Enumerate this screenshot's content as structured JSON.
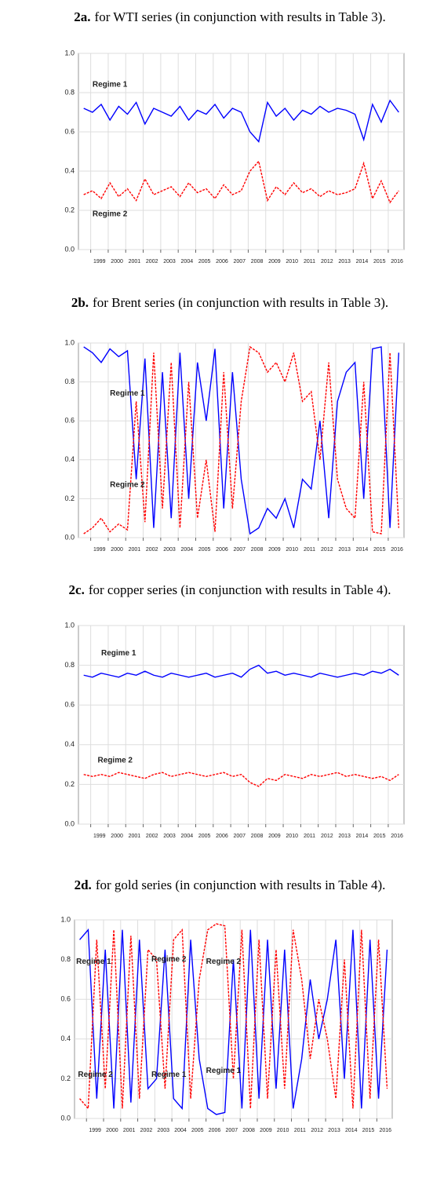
{
  "chart_data": [
    {
      "type": "line",
      "label": "2a.",
      "title": "for WTI series (in conjunction with results in Table 3).",
      "x": [
        1998.6,
        1999.1,
        1999.6,
        2000.1,
        2000.6,
        2001.1,
        2001.6,
        2002.1,
        2002.6,
        2003.1,
        2003.6,
        2004.1,
        2004.6,
        2005.1,
        2005.6,
        2006.1,
        2006.6,
        2007.1,
        2007.6,
        2008.1,
        2008.6,
        2009.1,
        2009.6,
        2010.1,
        2010.6,
        2011.1,
        2011.6,
        2012.1,
        2012.6,
        2013.1,
        2013.6,
        2014.1,
        2014.6,
        2015.1,
        2015.6,
        2016.1,
        2016.6
      ],
      "series": [
        {
          "name": "Regime 1",
          "color": "#0000ff",
          "values": [
            0.72,
            0.7,
            0.74,
            0.66,
            0.73,
            0.69,
            0.75,
            0.64,
            0.72,
            0.7,
            0.68,
            0.73,
            0.66,
            0.71,
            0.69,
            0.74,
            0.67,
            0.72,
            0.7,
            0.6,
            0.55,
            0.75,
            0.68,
            0.72,
            0.66,
            0.71,
            0.69,
            0.73,
            0.7,
            0.72,
            0.71,
            0.69,
            0.56,
            0.74,
            0.65,
            0.76,
            0.7
          ]
        },
        {
          "name": "Regime 2",
          "color": "#ff0000",
          "values": [
            0.28,
            0.3,
            0.26,
            0.34,
            0.27,
            0.31,
            0.25,
            0.36,
            0.28,
            0.3,
            0.32,
            0.27,
            0.34,
            0.29,
            0.31,
            0.26,
            0.33,
            0.28,
            0.3,
            0.4,
            0.45,
            0.25,
            0.32,
            0.28,
            0.34,
            0.29,
            0.31,
            0.27,
            0.3,
            0.28,
            0.29,
            0.31,
            0.44,
            0.26,
            0.35,
            0.24,
            0.3
          ]
        }
      ],
      "annotations": [
        {
          "text": "Regime 1",
          "x": 1999.1,
          "y": 0.84
        },
        {
          "text": "Regime 2",
          "x": 1999.1,
          "y": 0.18
        }
      ],
      "xlim": [
        1998.3,
        2016.9
      ],
      "xticks": [
        1999,
        2000,
        2001,
        2002,
        2003,
        2004,
        2005,
        2006,
        2007,
        2008,
        2009,
        2010,
        2011,
        2012,
        2013,
        2014,
        2015,
        2016
      ],
      "ylim": [
        0,
        1
      ],
      "yticks": [
        {
          "value": 0,
          "label": "0.0"
        },
        0.2,
        0.4,
        0.6,
        0.8,
        {
          "value": 1,
          "label": "1.0"
        }
      ],
      "grid": true
    },
    {
      "type": "line",
      "label": "2b.",
      "title": "for Brent series (in conjunction with results in Table 3).",
      "x": [
        1998.6,
        1999.1,
        1999.6,
        2000.1,
        2000.6,
        2001.1,
        2001.6,
        2002.1,
        2002.6,
        2003.1,
        2003.6,
        2004.1,
        2004.6,
        2005.1,
        2005.6,
        2006.1,
        2006.6,
        2007.1,
        2007.6,
        2008.1,
        2008.6,
        2009.1,
        2009.6,
        2010.1,
        2010.6,
        2011.1,
        2011.6,
        2012.1,
        2012.6,
        2013.1,
        2013.6,
        2014.1,
        2014.6,
        2015.1,
        2015.6,
        2016.1,
        2016.6
      ],
      "series": [
        {
          "name": "Regime 1",
          "color": "#0000ff",
          "values": [
            0.98,
            0.95,
            0.9,
            0.97,
            0.93,
            0.96,
            0.3,
            0.92,
            0.05,
            0.85,
            0.1,
            0.95,
            0.2,
            0.9,
            0.6,
            0.97,
            0.15,
            0.85,
            0.3,
            0.02,
            0.05,
            0.15,
            0.1,
            0.2,
            0.05,
            0.3,
            0.25,
            0.6,
            0.1,
            0.7,
            0.85,
            0.9,
            0.2,
            0.97,
            0.98,
            0.05,
            0.95
          ]
        },
        {
          "name": "Regime 2",
          "color": "#ff0000",
          "values": [
            0.02,
            0.05,
            0.1,
            0.03,
            0.07,
            0.04,
            0.7,
            0.08,
            0.95,
            0.15,
            0.9,
            0.05,
            0.8,
            0.1,
            0.4,
            0.03,
            0.85,
            0.15,
            0.7,
            0.98,
            0.95,
            0.85,
            0.9,
            0.8,
            0.95,
            0.7,
            0.75,
            0.4,
            0.9,
            0.3,
            0.15,
            0.1,
            0.8,
            0.03,
            0.02,
            0.95,
            0.05
          ]
        }
      ],
      "annotations": [
        {
          "text": "Regime 1",
          "x": 2000.1,
          "y": 0.74
        },
        {
          "text": "Regime 2",
          "x": 2000.1,
          "y": 0.27
        }
      ],
      "xlim": [
        1998.3,
        2016.9
      ],
      "xticks": [
        1999,
        2000,
        2001,
        2002,
        2003,
        2004,
        2005,
        2006,
        2007,
        2008,
        2009,
        2010,
        2011,
        2012,
        2013,
        2014,
        2015,
        2016
      ],
      "ylim": [
        0,
        1
      ],
      "yticks": [
        {
          "value": 0,
          "label": "0.0"
        },
        0.2,
        0.4,
        0.6,
        0.8,
        {
          "value": 1,
          "label": "1.0"
        }
      ],
      "grid": true
    },
    {
      "type": "line",
      "label": "2c.",
      "title": "for copper series (in conjunction with results in Table 4).",
      "x": [
        1998.6,
        1999.1,
        1999.6,
        2000.1,
        2000.6,
        2001.1,
        2001.6,
        2002.1,
        2002.6,
        2003.1,
        2003.6,
        2004.1,
        2004.6,
        2005.1,
        2005.6,
        2006.1,
        2006.6,
        2007.1,
        2007.6,
        2008.1,
        2008.6,
        2009.1,
        2009.6,
        2010.1,
        2010.6,
        2011.1,
        2011.6,
        2012.1,
        2012.6,
        2013.1,
        2013.6,
        2014.1,
        2014.6,
        2015.1,
        2015.6,
        2016.1,
        2016.6
      ],
      "series": [
        {
          "name": "Regime 1",
          "color": "#0000ff",
          "values": [
            0.75,
            0.74,
            0.76,
            0.75,
            0.74,
            0.76,
            0.75,
            0.77,
            0.75,
            0.74,
            0.76,
            0.75,
            0.74,
            0.75,
            0.76,
            0.74,
            0.75,
            0.76,
            0.74,
            0.78,
            0.8,
            0.76,
            0.77,
            0.75,
            0.76,
            0.75,
            0.74,
            0.76,
            0.75,
            0.74,
            0.75,
            0.76,
            0.75,
            0.77,
            0.76,
            0.78,
            0.75
          ]
        },
        {
          "name": "Regime 2",
          "color": "#ff0000",
          "values": [
            0.25,
            0.24,
            0.25,
            0.24,
            0.26,
            0.25,
            0.24,
            0.23,
            0.25,
            0.26,
            0.24,
            0.25,
            0.26,
            0.25,
            0.24,
            0.25,
            0.26,
            0.24,
            0.25,
            0.21,
            0.19,
            0.23,
            0.22,
            0.25,
            0.24,
            0.23,
            0.25,
            0.24,
            0.25,
            0.26,
            0.24,
            0.25,
            0.24,
            0.23,
            0.24,
            0.22,
            0.25
          ]
        }
      ],
      "annotations": [
        {
          "text": "Regime 1",
          "x": 1999.6,
          "y": 0.86
        },
        {
          "text": "Regime 2",
          "x": 1999.4,
          "y": 0.32
        }
      ],
      "xlim": [
        1998.3,
        2016.9
      ],
      "xticks": [
        1999,
        2000,
        2001,
        2002,
        2003,
        2004,
        2005,
        2006,
        2007,
        2008,
        2009,
        2010,
        2011,
        2012,
        2013,
        2014,
        2015,
        2016
      ],
      "ylim": [
        0,
        1
      ],
      "yticks": [
        {
          "value": 0,
          "label": "0.0"
        },
        0.2,
        0.4,
        0.6,
        0.8,
        {
          "value": 1,
          "label": "1.0"
        }
      ],
      "grid": true
    },
    {
      "type": "line",
      "label": "2d.",
      "title": "for gold series (in conjunction with results in Table 4).",
      "x": [
        1998.6,
        1999.1,
        1999.6,
        2000.1,
        2000.6,
        2001.1,
        2001.6,
        2002.1,
        2002.6,
        2003.1,
        2003.6,
        2004.1,
        2004.6,
        2005.1,
        2005.6,
        2006.1,
        2006.6,
        2007.1,
        2007.6,
        2008.1,
        2008.6,
        2009.1,
        2009.6,
        2010.1,
        2010.6,
        2011.1,
        2011.6,
        2012.1,
        2012.6,
        2013.1,
        2013.6,
        2014.1,
        2014.6,
        2015.1,
        2015.6,
        2016.1,
        2016.6
      ],
      "series": [
        {
          "name": "Regime 1",
          "color": "#0000ff",
          "values": [
            0.9,
            0.95,
            0.1,
            0.85,
            0.05,
            0.95,
            0.08,
            0.9,
            0.15,
            0.2,
            0.85,
            0.1,
            0.05,
            0.9,
            0.3,
            0.05,
            0.02,
            0.03,
            0.8,
            0.05,
            0.95,
            0.1,
            0.9,
            0.15,
            0.85,
            0.05,
            0.3,
            0.7,
            0.4,
            0.6,
            0.9,
            0.2,
            0.95,
            0.05,
            0.9,
            0.1,
            0.85
          ]
        },
        {
          "name": "Regime 2",
          "color": "#ff0000",
          "values": [
            0.1,
            0.05,
            0.9,
            0.15,
            0.95,
            0.05,
            0.92,
            0.1,
            0.85,
            0.8,
            0.15,
            0.9,
            0.95,
            0.1,
            0.7,
            0.95,
            0.98,
            0.97,
            0.2,
            0.95,
            0.05,
            0.9,
            0.1,
            0.85,
            0.15,
            0.95,
            0.7,
            0.3,
            0.6,
            0.4,
            0.1,
            0.8,
            0.05,
            0.95,
            0.1,
            0.9,
            0.15
          ]
        }
      ],
      "annotations": [
        {
          "text": "Regime 1",
          "x": 1998.4,
          "y": 0.79
        },
        {
          "text": "Regime 2",
          "x": 2002.8,
          "y": 0.8
        },
        {
          "text": "Regime 2",
          "x": 2006.0,
          "y": 0.79
        },
        {
          "text": "Regime 2",
          "x": 1998.5,
          "y": 0.22
        },
        {
          "text": "Regime 1",
          "x": 2002.8,
          "y": 0.22
        },
        {
          "text": "Regime 1",
          "x": 2006.0,
          "y": 0.24
        }
      ],
      "xlim": [
        1998.3,
        2016.9
      ],
      "xticks": [
        1999,
        2000,
        2001,
        2002,
        2003,
        2004,
        2005,
        2006,
        2007,
        2008,
        2009,
        2010,
        2011,
        2012,
        2013,
        2014,
        2015,
        2016
      ],
      "ylim": [
        0,
        1
      ],
      "yticks": [
        {
          "value": 0,
          "label": "0.0"
        },
        0.2,
        0.4,
        0.6,
        0.8,
        {
          "value": 1,
          "label": "1.0"
        }
      ],
      "grid": true
    }
  ]
}
